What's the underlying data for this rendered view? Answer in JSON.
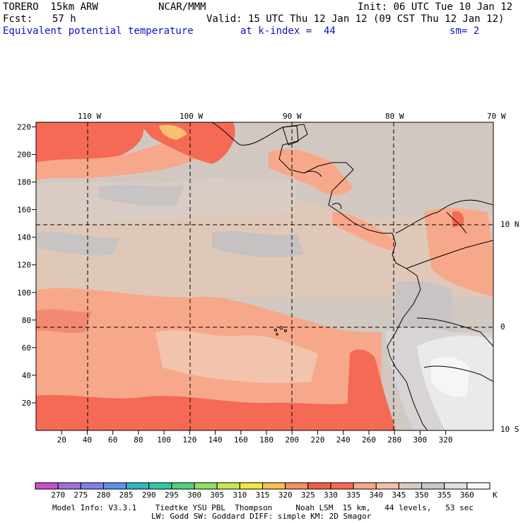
{
  "header": {
    "model": "TORERO  15km ARW",
    "center": "NCAR/MMM",
    "init": "Init: 06 UTC Tue 10 Jan 12",
    "fcst_label": "Fcst:",
    "fcst_value": "57 h",
    "valid": "Valid: 15 UTC Thu 12 Jan 12 (09 CST Thu 12 Jan 12)",
    "field": "Equivalent potential temperature",
    "level": "at k-index =  44",
    "smooth": "sm= 2"
  },
  "map": {
    "top_lon_labels": [
      "110 W",
      "100 W",
      "90 W",
      "80 W",
      "70 W"
    ],
    "right_lat_labels": [
      "10 N",
      "0",
      "10 S"
    ],
    "left_ticks": [
      "20",
      "40",
      "60",
      "80",
      "100",
      "120",
      "140",
      "160",
      "180",
      "200",
      "220"
    ],
    "bottom_ticks": [
      "20",
      "40",
      "60",
      "80",
      "100",
      "120",
      "140",
      "160",
      "180",
      "200",
      "220",
      "240",
      "260",
      "280",
      "300",
      "320"
    ]
  },
  "colorbar": {
    "labels": [
      "270",
      "275",
      "280",
      "285",
      "290",
      "295",
      "300",
      "305",
      "310",
      "315",
      "320",
      "325",
      "330",
      "335",
      "340",
      "345",
      "350",
      "355",
      "360"
    ],
    "unit": "K",
    "colors": [
      "#c850c8",
      "#a070d8",
      "#8080e8",
      "#6090e8",
      "#30b8c0",
      "#30c8a0",
      "#50d080",
      "#90e060",
      "#c8e850",
      "#f0e840",
      "#f8c050",
      "#f89060",
      "#f06048",
      "#f86858",
      "#f8a888",
      "#f0c0a8",
      "#d8ccc0",
      "#c8c8c8",
      "#e0e0e0",
      "#f8f8f8"
    ]
  },
  "footer": {
    "line1": "Model Info: V3.3.1    Tiedtke YSU PBL  Thompson     Noah LSM  15 km,   44 levels,   53 sec",
    "line2": "LW: Godd SW: Goddard DIFF: simple KM: 2D Smagor"
  },
  "colors": {
    "sea_warm": "#f46a54",
    "sea_mid": "#f8a88a",
    "sea_cool": "#f2c8b0",
    "land_gray": "#d0c8c2",
    "land_light": "#e8e8e8",
    "header_blue": "#1010c8"
  }
}
